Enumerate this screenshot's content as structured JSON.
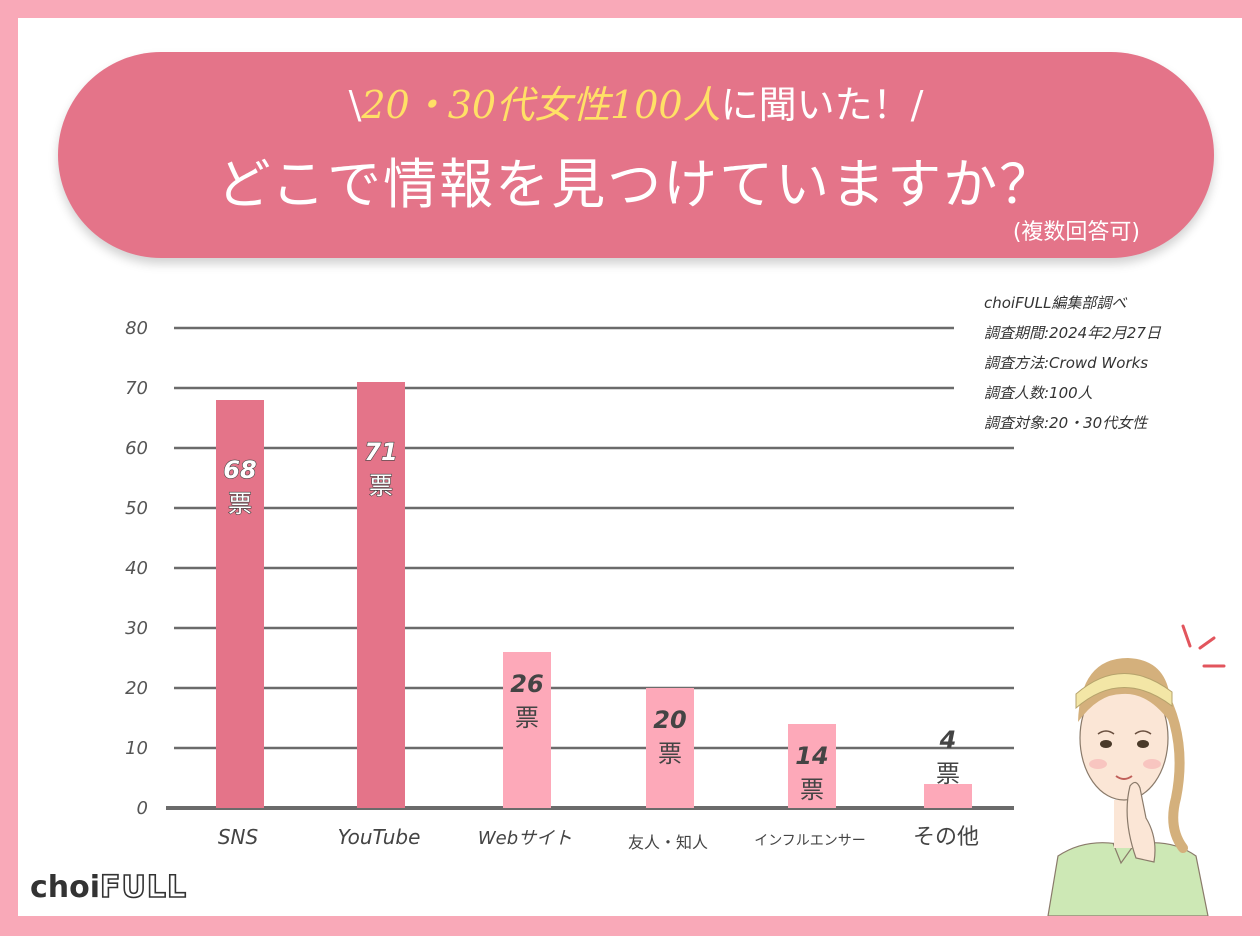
{
  "header": {
    "prefix": "\\",
    "highlight": "20・30代女性100人",
    "rest": "に聞いた！/",
    "title": "どこで情報を見つけていますか？",
    "note": "(複数回答可)"
  },
  "survey_info": [
    "choiFULL編集部調べ",
    "調査期間:2024年2月27日",
    "調査方法:Crowd Works",
    "調査人数:100人",
    "調査対象:20・30代女性"
  ],
  "logo": {
    "choi": "choi",
    "full": "FULL"
  },
  "colors": {
    "accent": "#e47489",
    "light": "#fda9b9",
    "frame": "#f9a9b8"
  },
  "chart_data": {
    "type": "bar",
    "categories": [
      "SNS",
      "YouTube",
      "Webサイト",
      "友人・知人",
      "インフルエンサー",
      "その他"
    ],
    "values": [
      68,
      71,
      26,
      20,
      14,
      4
    ],
    "unit": "票",
    "ylim": [
      0,
      80
    ],
    "yticks": [
      0,
      10,
      20,
      30,
      40,
      50,
      60,
      70,
      80
    ],
    "grid": true,
    "highlight_count": 2
  }
}
